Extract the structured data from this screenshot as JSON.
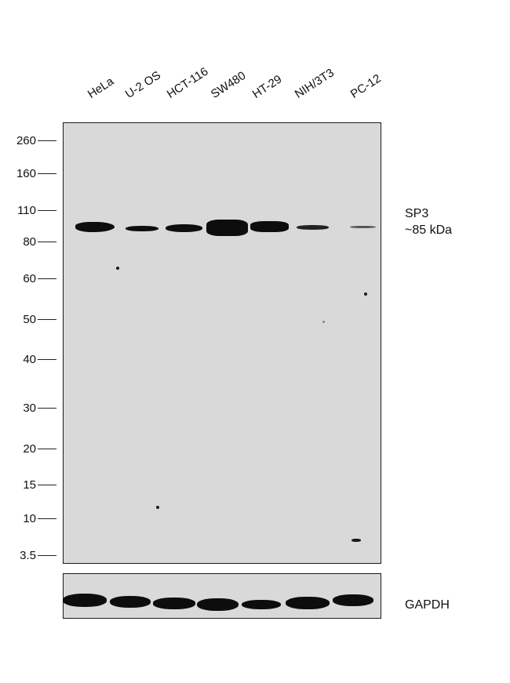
{
  "lanes": [
    "HeLa",
    "U-2 OS",
    "HCT-116",
    "SW480",
    "HT-29",
    "NIH/3T3",
    "PC-12"
  ],
  "mw_markers": [
    "260",
    "160",
    "110",
    "80",
    "60",
    "50",
    "40",
    "30",
    "20",
    "15",
    "10",
    "3.5"
  ],
  "target": {
    "name": "SP3",
    "size": "~85 kDa"
  },
  "loading_control": "GAPDH"
}
